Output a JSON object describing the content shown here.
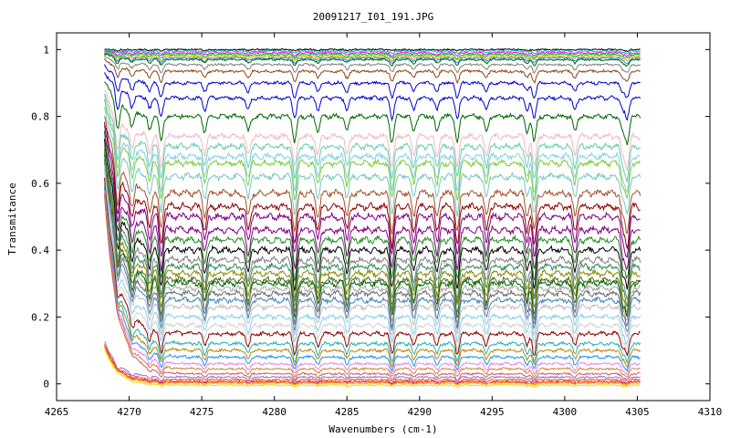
{
  "chart_data": {
    "type": "line",
    "title": "20091217_I01_191.JPG",
    "xlabel": "Wavenumbers (cm-1)",
    "ylabel": "Transmitance",
    "xlim": [
      4265,
      4310
    ],
    "ylim": [
      -0.05,
      1.05
    ],
    "x_ticks": [
      4265,
      4270,
      4275,
      4280,
      4285,
      4290,
      4295,
      4300,
      4305,
      4310
    ],
    "x_tick_labels": [
      "4265",
      "4270",
      "4275",
      "4280",
      "4285",
      "4290",
      "4295",
      "4300",
      "4305",
      "4310"
    ],
    "y_ticks": [
      0,
      0.2,
      0.4,
      0.6,
      0.8,
      1
    ],
    "y_tick_labels": [
      "0",
      "0.2",
      "0.4",
      "0.6",
      "0.8",
      "1"
    ],
    "grid": false,
    "legend": "none",
    "x_range": [
      4268.3,
      4305.2
    ],
    "absorption_lines_cm1": [
      4269.2,
      4270.2,
      4271.4,
      4272.2,
      4275.2,
      4278.2,
      4281.4,
      4283.0,
      4285.0,
      4288.1,
      4289.6,
      4291.2,
      4292.6,
      4294.6,
      4297.4,
      4297.9,
      4300.7,
      4304.0,
      4304.3
    ],
    "series": [
      {
        "baseline": 1.0,
        "color": "#000000"
      },
      {
        "baseline": 0.995,
        "color": "#00bcd4"
      },
      {
        "baseline": 0.99,
        "color": "#ff00ff"
      },
      {
        "baseline": 0.985,
        "color": "#00cc00"
      },
      {
        "baseline": 0.98,
        "color": "#ffa500"
      },
      {
        "baseline": 0.975,
        "color": "#1e90ff"
      },
      {
        "baseline": 0.97,
        "color": "#006400"
      },
      {
        "baseline": 0.955,
        "color": "#808080"
      },
      {
        "baseline": 0.935,
        "color": "#8b4513"
      },
      {
        "baseline": 0.9,
        "color": "#0000cc"
      },
      {
        "baseline": 0.855,
        "color": "#0000cc"
      },
      {
        "baseline": 0.8,
        "color": "#006400"
      },
      {
        "baseline": 0.74,
        "color": "#f4b6c2"
      },
      {
        "baseline": 0.71,
        "color": "#66cdaa"
      },
      {
        "baseline": 0.68,
        "color": "#87ceeb"
      },
      {
        "baseline": 0.66,
        "color": "#7ccd3c"
      },
      {
        "baseline": 0.62,
        "color": "#76c7c0"
      },
      {
        "baseline": 0.57,
        "color": "#a0522d"
      },
      {
        "baseline": 0.53,
        "color": "#8b0000"
      },
      {
        "baseline": 0.5,
        "color": "#800080"
      },
      {
        "baseline": 0.46,
        "color": "#800080"
      },
      {
        "baseline": 0.43,
        "color": "#228b22"
      },
      {
        "baseline": 0.4,
        "color": "#000000"
      },
      {
        "baseline": 0.37,
        "color": "#808080"
      },
      {
        "baseline": 0.35,
        "color": "#2e8b57"
      },
      {
        "baseline": 0.33,
        "color": "#8b8b00"
      },
      {
        "baseline": 0.31,
        "color": "#556b2f"
      },
      {
        "baseline": 0.3,
        "color": "#006400"
      },
      {
        "baseline": 0.285,
        "color": "#a9a9a9"
      },
      {
        "baseline": 0.27,
        "color": "#696969"
      },
      {
        "baseline": 0.25,
        "color": "#4682b4"
      },
      {
        "baseline": 0.23,
        "color": "#c0c0c0"
      },
      {
        "baseline": 0.2,
        "color": "#87ceeb"
      },
      {
        "baseline": 0.175,
        "color": "#d3d3d3"
      },
      {
        "baseline": 0.15,
        "color": "#8b0000"
      },
      {
        "baseline": 0.12,
        "color": "#20b2aa"
      },
      {
        "baseline": 0.1,
        "color": "#b8860b"
      },
      {
        "baseline": 0.08,
        "color": "#1e90ff"
      },
      {
        "baseline": 0.06,
        "color": "#ee82ee"
      },
      {
        "baseline": 0.045,
        "color": "#cd853f"
      },
      {
        "baseline": 0.03,
        "color": "#cd5c5c"
      },
      {
        "baseline": 0.02,
        "color": "#9370db"
      },
      {
        "baseline": 0.012,
        "color": "#ff4500"
      },
      {
        "baseline": 0.006,
        "color": "#dc143c"
      },
      {
        "baseline": 0.002,
        "color": "#ffa500"
      },
      {
        "baseline": -0.004,
        "color": "#ffd700"
      }
    ]
  }
}
